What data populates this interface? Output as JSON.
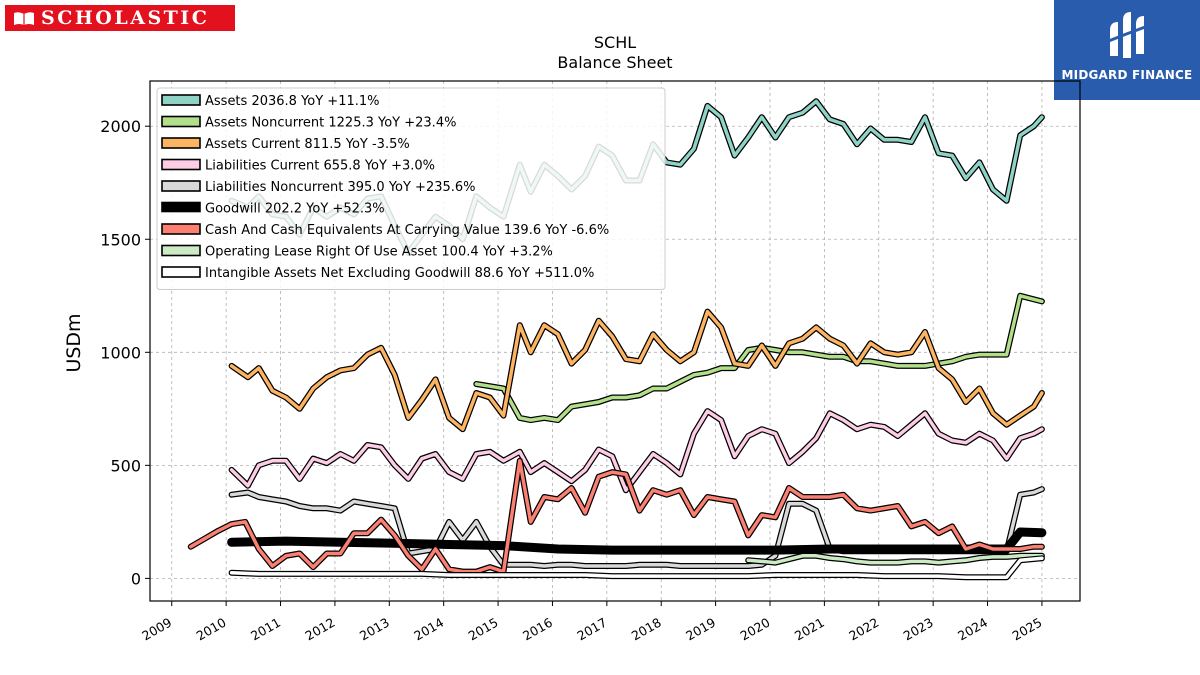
{
  "logos": {
    "left_text": "SCHOLASTIC",
    "right_text": "MIDGARD FINANCE"
  },
  "chart_data": {
    "type": "line",
    "title": "SCHL",
    "subtitle": "Balance  Sheet",
    "xlabel": "",
    "ylabel": "USDm",
    "xlim": [
      2008.6,
      2025.7
    ],
    "ylim": [
      -100,
      2200
    ],
    "xticks": [
      "2009",
      "2010",
      "2011",
      "2012",
      "2013",
      "2014",
      "2015",
      "2016",
      "2017",
      "2018",
      "2019",
      "2020",
      "2021",
      "2022",
      "2023",
      "2024",
      "2025"
    ],
    "yticks": [
      "0",
      "500",
      "1000",
      "1500",
      "2000"
    ],
    "grid": true,
    "legend_position": "top-left",
    "series": [
      {
        "name": "Assets",
        "label": "Assets  2036.8 YoY +11.1%",
        "color": "#8fd3c7",
        "x": [
          2010.1,
          2010.4,
          2010.6,
          2010.85,
          2011.1,
          2011.35,
          2011.6,
          2011.85,
          2012.1,
          2012.35,
          2012.6,
          2012.85,
          2013.1,
          2013.35,
          2013.6,
          2013.85,
          2014.1,
          2014.35,
          2014.6,
          2014.85,
          2015.1,
          2015.4,
          2015.6,
          2015.85,
          2016.1,
          2016.35,
          2016.6,
          2016.85,
          2017.1,
          2017.35,
          2017.6,
          2017.85,
          2018.1,
          2018.35,
          2018.6,
          2018.85,
          2019.1,
          2019.35,
          2019.6,
          2019.85,
          2020.1,
          2020.35,
          2020.6,
          2020.85,
          2021.1,
          2021.35,
          2021.6,
          2021.85,
          2022.1,
          2022.35,
          2022.6,
          2022.85,
          2023.1,
          2023.35,
          2023.6,
          2023.85,
          2024.1,
          2024.35,
          2024.6,
          2024.85,
          2025.0
        ],
        "y": [
          1670,
          1640,
          1690,
          1610,
          1600,
          1520,
          1640,
          1600,
          1640,
          1610,
          1680,
          1690,
          1560,
          1440,
          1520,
          1600,
          1560,
          1500,
          1690,
          1640,
          1600,
          1830,
          1710,
          1830,
          1780,
          1720,
          1780,
          1910,
          1870,
          1760,
          1760,
          1920,
          1840,
          1830,
          1900,
          2090,
          2040,
          1870,
          1950,
          2040,
          1950,
          2040,
          2060,
          2110,
          2030,
          2010,
          1920,
          1990,
          1940,
          1940,
          1930,
          2040,
          1880,
          1870,
          1770,
          1840,
          1720,
          1670,
          1960,
          2000,
          2040
        ]
      },
      {
        "name": "Assets Noncurrent",
        "label": "Assets Noncurrent  1225.3 YoY +23.4%",
        "color": "#b2df8a",
        "x": [
          2014.6,
          2014.85,
          2015.1,
          2015.4,
          2015.6,
          2015.85,
          2016.1,
          2016.35,
          2016.6,
          2016.85,
          2017.1,
          2017.35,
          2017.6,
          2017.85,
          2018.1,
          2018.35,
          2018.6,
          2018.85,
          2019.1,
          2019.35,
          2019.6,
          2019.85,
          2020.1,
          2020.35,
          2020.6,
          2020.85,
          2021.1,
          2021.35,
          2021.6,
          2021.85,
          2022.1,
          2022.35,
          2022.6,
          2022.85,
          2023.1,
          2023.35,
          2023.6,
          2023.85,
          2024.1,
          2024.35,
          2024.6,
          2025.0
        ],
        "y": [
          860,
          850,
          840,
          710,
          700,
          710,
          700,
          760,
          770,
          780,
          800,
          800,
          810,
          840,
          840,
          870,
          900,
          910,
          930,
          930,
          1010,
          1020,
          1010,
          1000,
          1000,
          990,
          980,
          980,
          960,
          960,
          950,
          940,
          940,
          940,
          950,
          960,
          980,
          990,
          990,
          990,
          1250,
          1225
        ]
      },
      {
        "name": "Assets Current",
        "label": "Assets Current  811.5 YoY -3.5%",
        "color": "#fdb462",
        "x": [
          2010.1,
          2010.4,
          2010.6,
          2010.85,
          2011.1,
          2011.35,
          2011.6,
          2011.85,
          2012.1,
          2012.35,
          2012.6,
          2012.85,
          2013.1,
          2013.35,
          2013.6,
          2013.85,
          2014.1,
          2014.35,
          2014.6,
          2014.85,
          2015.1,
          2015.4,
          2015.6,
          2015.85,
          2016.1,
          2016.35,
          2016.6,
          2016.85,
          2017.1,
          2017.35,
          2017.6,
          2017.85,
          2018.1,
          2018.35,
          2018.6,
          2018.85,
          2019.1,
          2019.35,
          2019.6,
          2019.85,
          2020.1,
          2020.35,
          2020.6,
          2020.85,
          2021.1,
          2021.35,
          2021.6,
          2021.85,
          2022.1,
          2022.35,
          2022.6,
          2022.85,
          2023.1,
          2023.35,
          2023.6,
          2023.85,
          2024.1,
          2024.35,
          2024.6,
          2024.85,
          2025.0
        ],
        "y": [
          940,
          890,
          930,
          830,
          800,
          750,
          840,
          890,
          920,
          930,
          990,
          1020,
          900,
          710,
          790,
          880,
          710,
          660,
          820,
          800,
          720,
          1120,
          1000,
          1120,
          1080,
          950,
          1010,
          1140,
          1070,
          970,
          960,
          1080,
          1010,
          960,
          1000,
          1180,
          1110,
          950,
          940,
          1030,
          940,
          1040,
          1060,
          1110,
          1060,
          1030,
          950,
          1040,
          1000,
          990,
          1000,
          1090,
          930,
          880,
          780,
          840,
          730,
          680,
          720,
          760,
          820
        ]
      },
      {
        "name": "Liabilities Current",
        "label": "Liabilities Current  655.8 YoY +3.0%",
        "color": "#fccde5",
        "x": [
          2010.1,
          2010.4,
          2010.6,
          2010.85,
          2011.1,
          2011.35,
          2011.6,
          2011.85,
          2012.1,
          2012.35,
          2012.6,
          2012.85,
          2013.1,
          2013.35,
          2013.6,
          2013.85,
          2014.1,
          2014.35,
          2014.6,
          2014.85,
          2015.1,
          2015.4,
          2015.6,
          2015.85,
          2016.1,
          2016.35,
          2016.6,
          2016.85,
          2017.1,
          2017.35,
          2017.6,
          2017.85,
          2018.1,
          2018.35,
          2018.6,
          2018.85,
          2019.1,
          2019.35,
          2019.6,
          2019.85,
          2020.1,
          2020.35,
          2020.6,
          2020.85,
          2021.1,
          2021.35,
          2021.6,
          2021.85,
          2022.1,
          2022.35,
          2022.6,
          2022.85,
          2023.1,
          2023.35,
          2023.6,
          2023.85,
          2024.1,
          2024.35,
          2024.6,
          2024.85,
          2025.0
        ],
        "y": [
          480,
          410,
          500,
          520,
          520,
          440,
          530,
          510,
          550,
          520,
          590,
          580,
          500,
          440,
          530,
          550,
          470,
          440,
          550,
          560,
          520,
          560,
          470,
          510,
          470,
          430,
          480,
          570,
          540,
          390,
          470,
          550,
          510,
          460,
          640,
          740,
          700,
          540,
          630,
          660,
          640,
          510,
          560,
          620,
          730,
          700,
          660,
          680,
          670,
          630,
          680,
          730,
          640,
          610,
          600,
          640,
          610,
          530,
          620,
          640,
          660
        ]
      },
      {
        "name": "Liabilities Noncurrent",
        "label": "Liabilities Noncurrent  395.0 YoY +235.6%",
        "color": "#d9d9d9",
        "x": [
          2010.1,
          2010.4,
          2010.6,
          2010.85,
          2011.1,
          2011.35,
          2011.6,
          2011.85,
          2012.1,
          2012.35,
          2012.6,
          2012.85,
          2013.1,
          2013.35,
          2013.6,
          2013.85,
          2014.1,
          2014.35,
          2014.6,
          2014.85,
          2015.1,
          2015.4,
          2015.6,
          2015.85,
          2016.1,
          2016.35,
          2016.6,
          2016.85,
          2017.1,
          2017.35,
          2017.6,
          2017.85,
          2018.1,
          2018.35,
          2018.6,
          2018.85,
          2019.1,
          2019.35,
          2019.6,
          2019.85,
          2020.1,
          2020.35,
          2020.6,
          2020.85,
          2021.1,
          2021.35,
          2021.6,
          2021.85,
          2022.1,
          2022.35,
          2022.6,
          2022.85,
          2023.1,
          2023.35,
          2023.6,
          2023.85,
          2024.1,
          2024.35,
          2024.6,
          2024.85,
          2025.0
        ],
        "y": [
          370,
          380,
          360,
          350,
          340,
          320,
          310,
          310,
          300,
          340,
          330,
          320,
          310,
          110,
          120,
          130,
          250,
          170,
          250,
          140,
          60,
          60,
          60,
          55,
          60,
          60,
          55,
          55,
          55,
          55,
          60,
          60,
          60,
          55,
          55,
          55,
          55,
          55,
          55,
          60,
          100,
          330,
          330,
          300,
          130,
          120,
          120,
          120,
          120,
          120,
          120,
          120,
          120,
          120,
          120,
          120,
          120,
          120,
          370,
          380,
          395
        ]
      },
      {
        "name": "Goodwill",
        "label": "Goodwill  202.2 YoY +52.3%",
        "color": "#000000",
        "x": [
          2010.1,
          2011.1,
          2012.1,
          2013.1,
          2014.1,
          2015.1,
          2016.1,
          2017.1,
          2018.1,
          2019.1,
          2020.1,
          2021.1,
          2022.1,
          2023.1,
          2024.1,
          2024.35,
          2024.6,
          2025.0
        ],
        "y": [
          160,
          165,
          160,
          155,
          150,
          145,
          130,
          125,
          125,
          125,
          125,
          130,
          130,
          130,
          130,
          130,
          205,
          202
        ]
      },
      {
        "name": "Cash And Cash Equivalents At Carrying Value",
        "label": "Cash And Cash Equivalents At Carrying Value  139.6 YoY -6.6%",
        "color": "#fb8072",
        "x": [
          2009.35,
          2009.6,
          2009.85,
          2010.1,
          2010.35,
          2010.6,
          2010.85,
          2011.1,
          2011.35,
          2011.6,
          2011.85,
          2012.1,
          2012.35,
          2012.6,
          2012.85,
          2013.1,
          2013.35,
          2013.6,
          2013.85,
          2014.1,
          2014.35,
          2014.6,
          2014.85,
          2015.1,
          2015.4,
          2015.6,
          2015.85,
          2016.1,
          2016.35,
          2016.6,
          2016.85,
          2017.1,
          2017.35,
          2017.6,
          2017.85,
          2018.1,
          2018.35,
          2018.6,
          2018.85,
          2019.1,
          2019.35,
          2019.6,
          2019.85,
          2020.1,
          2020.35,
          2020.6,
          2020.85,
          2021.1,
          2021.35,
          2021.6,
          2021.85,
          2022.1,
          2022.35,
          2022.6,
          2022.85,
          2023.1,
          2023.35,
          2023.6,
          2023.85,
          2024.1,
          2024.35,
          2024.6,
          2024.85,
          2025.0
        ],
        "y": [
          140,
          175,
          210,
          240,
          250,
          130,
          55,
          100,
          110,
          50,
          110,
          110,
          200,
          200,
          260,
          190,
          100,
          40,
          130,
          40,
          30,
          30,
          50,
          30,
          520,
          250,
          360,
          350,
          400,
          290,
          450,
          470,
          460,
          300,
          390,
          370,
          390,
          280,
          360,
          350,
          340,
          190,
          280,
          270,
          400,
          360,
          360,
          360,
          370,
          310,
          300,
          310,
          320,
          230,
          250,
          200,
          230,
          130,
          150,
          130,
          130,
          130,
          140,
          140
        ]
      },
      {
        "name": "Operating Lease Right Of Use Asset",
        "label": "Operating Lease Right Of Use Asset  100.4 YoY +3.2%",
        "color": "#ccebc5",
        "x": [
          2019.6,
          2019.85,
          2020.1,
          2020.35,
          2020.6,
          2020.85,
          2021.1,
          2021.35,
          2021.6,
          2021.85,
          2022.1,
          2022.35,
          2022.6,
          2022.85,
          2023.1,
          2023.35,
          2023.6,
          2023.85,
          2024.1,
          2024.35,
          2024.6,
          2024.85,
          2025.0
        ],
        "y": [
          80,
          75,
          70,
          85,
          100,
          100,
          90,
          85,
          75,
          70,
          70,
          70,
          75,
          75,
          70,
          75,
          80,
          90,
          95,
          95,
          100,
          100,
          100
        ]
      },
      {
        "name": "Intangible Assets Net Excluding Goodwill",
        "label": "Intangible Assets Net Excluding Goodwill  88.6 YoY +511.0%",
        "color": "#ffffff",
        "x": [
          2010.1,
          2010.6,
          2011.1,
          2011.6,
          2012.1,
          2012.6,
          2013.1,
          2013.6,
          2014.1,
          2014.6,
          2015.1,
          2015.6,
          2016.1,
          2016.6,
          2017.1,
          2017.6,
          2018.1,
          2018.6,
          2019.1,
          2019.6,
          2020.1,
          2020.6,
          2021.1,
          2021.6,
          2022.1,
          2022.6,
          2023.1,
          2023.6,
          2024.1,
          2024.35,
          2024.6,
          2025.0
        ],
        "y": [
          25,
          20,
          20,
          20,
          20,
          20,
          20,
          20,
          15,
          15,
          15,
          15,
          15,
          15,
          10,
          10,
          10,
          10,
          10,
          10,
          15,
          15,
          15,
          15,
          10,
          10,
          10,
          5,
          5,
          5,
          80,
          89
        ]
      }
    ]
  }
}
